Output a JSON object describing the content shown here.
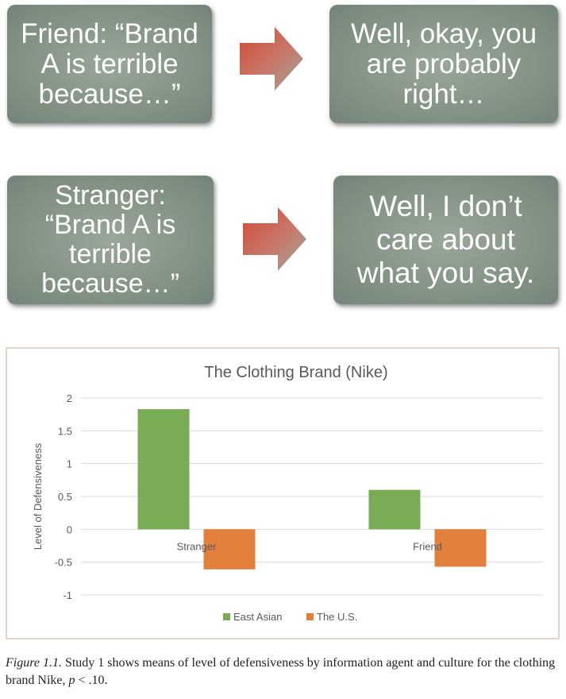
{
  "diagram": {
    "boxes": [
      {
        "text": "Friend: “Brand A is terrible because…”"
      },
      {
        "text": "Well, okay, you are probably right…"
      },
      {
        "text": "Stranger: “Brand A is terrible because…”"
      },
      {
        "text": "Well, I don’t care about what you say."
      }
    ],
    "arrow_color": "#d0553f"
  },
  "chart_data": {
    "type": "bar",
    "title": "The Clothing Brand (Nike)",
    "xlabel": "",
    "ylabel": "Level of Defensiveness",
    "categories": [
      "Stranger",
      "Friend"
    ],
    "series": [
      {
        "name": "East Asian",
        "values": [
          1.83,
          0.6
        ],
        "color": "#7aab55"
      },
      {
        "name": "The U.S.",
        "values": [
          -0.61,
          -0.57
        ],
        "color": "#e27f3d"
      }
    ],
    "ylim": [
      -1,
      2
    ],
    "yticks": [
      2,
      1.5,
      1,
      0.5,
      0,
      -0.5,
      -1
    ],
    "ytick_labels": [
      "2",
      "1.5",
      "1",
      "0.5",
      "0",
      "-0.5",
      "-1"
    ],
    "grid": true,
    "legend_position": "bottom"
  },
  "caption": {
    "label": "Figure 1.1.",
    "text": " Study 1 shows means of level of defensiveness by information agent and culture for the clothing brand Nike, ",
    "p_symbol": "p",
    "p_value": " < .10."
  }
}
